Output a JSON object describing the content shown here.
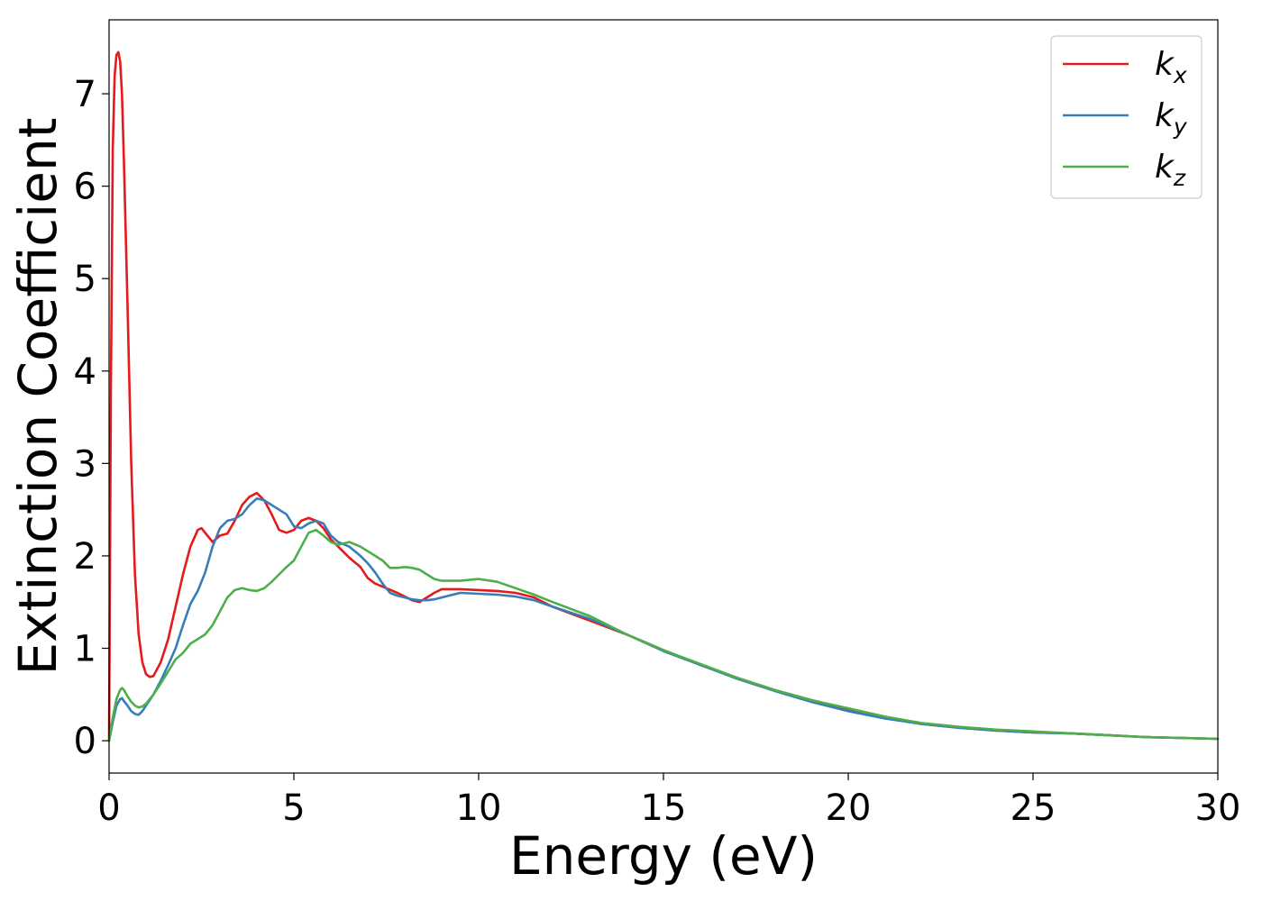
{
  "chart_data": {
    "type": "line",
    "xlabel": "Energy (eV)",
    "ylabel": "Extinction Coefficient",
    "xlim": [
      0,
      30
    ],
    "ylim": [
      -0.35,
      7.8
    ],
    "xticks": [
      0,
      5,
      10,
      15,
      20,
      25,
      30
    ],
    "yticks": [
      0,
      1,
      2,
      3,
      4,
      5,
      6,
      7
    ],
    "grid": false,
    "legend_position": "top-right",
    "series": [
      {
        "name": "k",
        "subscript": "x",
        "color": "#e41a1c",
        "x": [
          0,
          0.05,
          0.1,
          0.15,
          0.2,
          0.25,
          0.3,
          0.35,
          0.4,
          0.5,
          0.6,
          0.7,
          0.8,
          0.9,
          1.0,
          1.1,
          1.2,
          1.4,
          1.6,
          1.8,
          2.0,
          2.2,
          2.4,
          2.5,
          2.6,
          2.8,
          3.0,
          3.2,
          3.4,
          3.6,
          3.8,
          4.0,
          4.2,
          4.4,
          4.6,
          4.8,
          5.0,
          5.2,
          5.4,
          5.6,
          5.8,
          6.0,
          6.2,
          6.5,
          6.8,
          7.0,
          7.2,
          7.5,
          7.8,
          8.0,
          8.2,
          8.4,
          8.6,
          8.8,
          9.0,
          9.5,
          10.0,
          10.5,
          11.0,
          11.5,
          12.0,
          13.0,
          14.0,
          15.0,
          16.0,
          17.0,
          18.0,
          19.0,
          20.0,
          21.0,
          22.0,
          23.0,
          24.0,
          25.0,
          26.0,
          27.0,
          28.0,
          29.0,
          30.0
        ],
        "y": [
          0,
          3.8,
          6.4,
          7.2,
          7.42,
          7.45,
          7.35,
          7.0,
          6.3,
          4.7,
          3.0,
          1.8,
          1.15,
          0.85,
          0.72,
          0.69,
          0.7,
          0.85,
          1.1,
          1.45,
          1.8,
          2.1,
          2.28,
          2.3,
          2.25,
          2.15,
          2.22,
          2.24,
          2.38,
          2.55,
          2.64,
          2.68,
          2.6,
          2.45,
          2.28,
          2.25,
          2.28,
          2.38,
          2.41,
          2.38,
          2.3,
          2.18,
          2.1,
          1.98,
          1.88,
          1.76,
          1.7,
          1.65,
          1.6,
          1.56,
          1.52,
          1.5,
          1.55,
          1.6,
          1.64,
          1.64,
          1.63,
          1.62,
          1.6,
          1.55,
          1.45,
          1.3,
          1.15,
          0.98,
          0.82,
          0.68,
          0.55,
          0.44,
          0.34,
          0.25,
          0.18,
          0.14,
          0.11,
          0.09,
          0.08,
          0.06,
          0.04,
          0.03,
          0.02
        ]
      },
      {
        "name": "k",
        "subscript": "y",
        "color": "#377eb8",
        "x": [
          0,
          0.1,
          0.2,
          0.3,
          0.35,
          0.4,
          0.5,
          0.6,
          0.7,
          0.8,
          0.9,
          1.0,
          1.2,
          1.4,
          1.6,
          1.8,
          2.0,
          2.2,
          2.4,
          2.6,
          2.8,
          3.0,
          3.2,
          3.4,
          3.6,
          3.8,
          4.0,
          4.2,
          4.4,
          4.6,
          4.8,
          5.0,
          5.2,
          5.4,
          5.6,
          5.8,
          6.0,
          6.2,
          6.5,
          6.8,
          7.0,
          7.2,
          7.4,
          7.6,
          7.8,
          8.0,
          8.2,
          8.4,
          8.6,
          8.8,
          9.0,
          9.5,
          10.0,
          10.5,
          11.0,
          11.5,
          12.0,
          13.0,
          14.0,
          15.0,
          16.0,
          17.0,
          18.0,
          19.0,
          20.0,
          21.0,
          22.0,
          23.0,
          24.0,
          25.0,
          26.0,
          27.0,
          28.0,
          29.0,
          30.0
        ],
        "y": [
          0,
          0.2,
          0.38,
          0.45,
          0.46,
          0.43,
          0.38,
          0.32,
          0.29,
          0.28,
          0.32,
          0.38,
          0.5,
          0.65,
          0.82,
          1.0,
          1.25,
          1.48,
          1.62,
          1.82,
          2.1,
          2.3,
          2.38,
          2.4,
          2.45,
          2.55,
          2.62,
          2.6,
          2.55,
          2.5,
          2.45,
          2.32,
          2.3,
          2.35,
          2.38,
          2.35,
          2.22,
          2.15,
          2.1,
          2.0,
          1.92,
          1.82,
          1.7,
          1.6,
          1.57,
          1.55,
          1.53,
          1.52,
          1.52,
          1.53,
          1.55,
          1.6,
          1.59,
          1.58,
          1.56,
          1.52,
          1.45,
          1.32,
          1.15,
          0.97,
          0.82,
          0.67,
          0.54,
          0.42,
          0.32,
          0.24,
          0.18,
          0.14,
          0.11,
          0.09,
          0.08,
          0.06,
          0.04,
          0.03,
          0.02
        ]
      },
      {
        "name": "k",
        "subscript": "z",
        "color": "#4daf4a",
        "x": [
          0,
          0.1,
          0.2,
          0.3,
          0.35,
          0.4,
          0.5,
          0.6,
          0.7,
          0.8,
          0.9,
          1.0,
          1.2,
          1.4,
          1.6,
          1.8,
          2.0,
          2.2,
          2.4,
          2.6,
          2.8,
          3.0,
          3.2,
          3.4,
          3.6,
          3.8,
          4.0,
          4.2,
          4.4,
          4.6,
          4.8,
          5.0,
          5.2,
          5.4,
          5.6,
          5.8,
          6.0,
          6.2,
          6.5,
          6.8,
          7.0,
          7.2,
          7.4,
          7.6,
          7.8,
          8.0,
          8.2,
          8.4,
          8.6,
          8.8,
          9.0,
          9.5,
          10.0,
          10.5,
          11.0,
          11.5,
          12.0,
          13.0,
          14.0,
          15.0,
          16.0,
          17.0,
          18.0,
          19.0,
          20.0,
          21.0,
          22.0,
          23.0,
          24.0,
          25.0,
          26.0,
          27.0,
          28.0,
          29.0,
          30.0
        ],
        "y": [
          0,
          0.25,
          0.45,
          0.55,
          0.57,
          0.55,
          0.48,
          0.42,
          0.38,
          0.36,
          0.37,
          0.4,
          0.5,
          0.62,
          0.75,
          0.88,
          0.95,
          1.05,
          1.1,
          1.15,
          1.25,
          1.4,
          1.55,
          1.63,
          1.65,
          1.63,
          1.62,
          1.65,
          1.72,
          1.8,
          1.88,
          1.95,
          2.1,
          2.25,
          2.28,
          2.22,
          2.15,
          2.12,
          2.15,
          2.1,
          2.05,
          2.0,
          1.95,
          1.87,
          1.87,
          1.88,
          1.87,
          1.85,
          1.8,
          1.75,
          1.73,
          1.73,
          1.75,
          1.72,
          1.65,
          1.58,
          1.5,
          1.35,
          1.15,
          0.98,
          0.83,
          0.68,
          0.55,
          0.44,
          0.35,
          0.26,
          0.19,
          0.15,
          0.12,
          0.1,
          0.08,
          0.06,
          0.04,
          0.03,
          0.02
        ]
      }
    ]
  }
}
